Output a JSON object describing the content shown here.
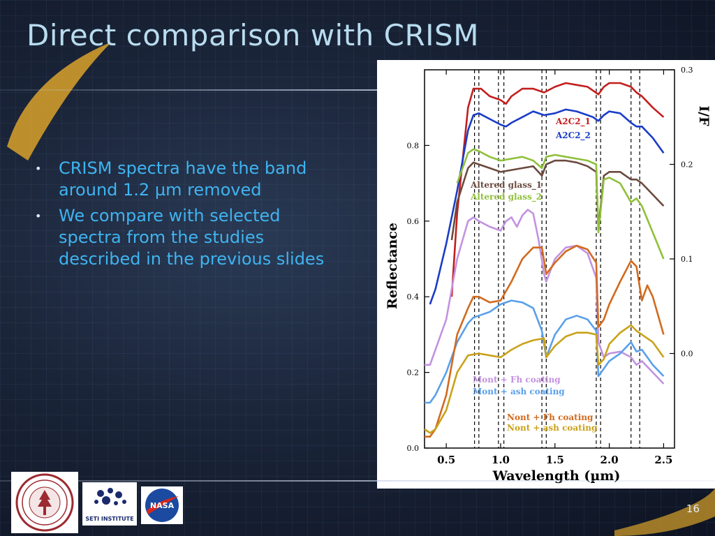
{
  "slide": {
    "title": "Direct comparison with CRISM",
    "bullets": [
      "CRISM spectra have the band around 1.2 µm removed",
      "We compare with selected spectra from the studies described in the previous slides"
    ],
    "page_number": "16"
  },
  "logos": {
    "seti_label": "SETI INSTITUTE",
    "nasa_label": "NASA"
  },
  "colors": {
    "title": "#b9dcef",
    "bullet_text": "#3fb4f0",
    "accent_swoosh": "#e0a020"
  },
  "chart_data": {
    "type": "line",
    "xlabel": "Wavelength (µm)",
    "ylabel": "Reflectance",
    "y2label": "I/F",
    "xlim": [
      0.3,
      2.6
    ],
    "ylim": [
      0.0,
      1.0
    ],
    "x_ticks": [
      "0.5",
      "1.0",
      "1.5",
      "2.0",
      "2.5"
    ],
    "x_tick_values": [
      0.5,
      1.0,
      1.5,
      2.0,
      2.5
    ],
    "y_ticks": [
      "0.0",
      "0.2",
      "0.4",
      "0.6",
      "0.8"
    ],
    "y_tick_values": [
      0.0,
      0.2,
      0.4,
      0.6,
      0.8
    ],
    "y2_ticks": [
      "0.0",
      "0.1",
      "0.2",
      "0.3"
    ],
    "y2_tick_reflectance": [
      0.25,
      0.5,
      0.75,
      1.0
    ],
    "vlines": [
      0.76,
      0.8,
      0.98,
      1.03,
      1.38,
      1.42,
      1.88,
      1.92,
      2.2,
      2.28
    ],
    "grid": false,
    "series": [
      {
        "name": "A2C2_1",
        "color": "#c41e1e",
        "x": [
          0.55,
          0.6,
          0.7,
          0.75,
          0.82,
          0.9,
          1.0,
          1.05,
          1.1,
          1.2,
          1.3,
          1.4,
          1.5,
          1.6,
          1.7,
          1.8,
          1.85,
          1.9,
          1.95,
          2.0,
          2.1,
          2.2,
          2.25,
          2.3,
          2.4,
          2.5
        ],
        "values": [
          0.4,
          0.62,
          0.9,
          0.95,
          0.95,
          0.93,
          0.92,
          0.91,
          0.93,
          0.95,
          0.95,
          0.94,
          0.955,
          0.965,
          0.96,
          0.955,
          0.945,
          0.935,
          0.955,
          0.965,
          0.965,
          0.955,
          0.94,
          0.93,
          0.9,
          0.875
        ]
      },
      {
        "name": "A2C2_2",
        "color": "#1a3cc8",
        "x": [
          0.35,
          0.4,
          0.5,
          0.6,
          0.7,
          0.75,
          0.8,
          0.9,
          1.0,
          1.05,
          1.1,
          1.2,
          1.3,
          1.4,
          1.5,
          1.6,
          1.7,
          1.8,
          1.85,
          1.9,
          1.95,
          2.0,
          2.1,
          2.2,
          2.25,
          2.3,
          2.4,
          2.5
        ],
        "values": [
          0.38,
          0.42,
          0.54,
          0.68,
          0.84,
          0.88,
          0.885,
          0.87,
          0.855,
          0.85,
          0.86,
          0.875,
          0.89,
          0.88,
          0.885,
          0.895,
          0.89,
          0.88,
          0.875,
          0.865,
          0.88,
          0.89,
          0.885,
          0.86,
          0.85,
          0.85,
          0.82,
          0.78
        ]
      },
      {
        "name": "Altered glass_1",
        "color": "#6b4a3e",
        "x": [
          0.55,
          0.6,
          0.7,
          0.75,
          0.8,
          0.9,
          1.0,
          1.1,
          1.2,
          1.3,
          1.38,
          1.42,
          1.5,
          1.6,
          1.7,
          1.8,
          1.88,
          1.9,
          1.95,
          2.0,
          2.1,
          2.2,
          2.25,
          2.3,
          2.4,
          2.5
        ],
        "values": [
          0.55,
          0.65,
          0.74,
          0.755,
          0.75,
          0.74,
          0.73,
          0.735,
          0.74,
          0.745,
          0.72,
          0.75,
          0.76,
          0.76,
          0.755,
          0.745,
          0.73,
          0.58,
          0.72,
          0.73,
          0.73,
          0.71,
          0.71,
          0.7,
          0.67,
          0.64
        ]
      },
      {
        "name": "Altered glass_2",
        "color": "#8fc03a",
        "x": [
          0.6,
          0.7,
          0.75,
          0.8,
          0.9,
          1.0,
          1.1,
          1.2,
          1.3,
          1.38,
          1.42,
          1.5,
          1.6,
          1.7,
          1.8,
          1.88,
          1.9,
          1.95,
          2.0,
          2.1,
          2.2,
          2.25,
          2.3,
          2.4,
          2.5
        ],
        "values": [
          0.7,
          0.78,
          0.79,
          0.785,
          0.77,
          0.76,
          0.765,
          0.77,
          0.76,
          0.74,
          0.77,
          0.775,
          0.77,
          0.765,
          0.76,
          0.75,
          0.57,
          0.71,
          0.715,
          0.7,
          0.65,
          0.66,
          0.64,
          0.57,
          0.5
        ]
      },
      {
        "name": "Mont + Fh coating",
        "color": "#c392e0",
        "x": [
          0.3,
          0.35,
          0.4,
          0.5,
          0.6,
          0.7,
          0.75,
          0.8,
          0.9,
          1.0,
          1.05,
          1.1,
          1.15,
          1.2,
          1.25,
          1.3,
          1.35,
          1.4,
          1.42,
          1.5,
          1.6,
          1.7,
          1.8,
          1.88,
          1.9,
          1.95,
          2.0,
          2.1,
          2.2,
          2.25,
          2.3,
          2.4,
          2.5
        ],
        "values": [
          0.22,
          0.22,
          0.26,
          0.34,
          0.5,
          0.6,
          0.61,
          0.6,
          0.585,
          0.575,
          0.6,
          0.61,
          0.585,
          0.615,
          0.63,
          0.62,
          0.55,
          0.46,
          0.44,
          0.5,
          0.53,
          0.535,
          0.515,
          0.45,
          0.28,
          0.24,
          0.25,
          0.255,
          0.24,
          0.22,
          0.23,
          0.2,
          0.17
        ]
      },
      {
        "name": "Mont + ash coating",
        "color": "#5aa0ea",
        "x": [
          0.3,
          0.35,
          0.4,
          0.5,
          0.6,
          0.7,
          0.75,
          0.8,
          0.9,
          1.0,
          1.1,
          1.2,
          1.3,
          1.38,
          1.42,
          1.5,
          1.6,
          1.7,
          1.8,
          1.88,
          1.9,
          1.95,
          2.0,
          2.1,
          2.2,
          2.25,
          2.3,
          2.4,
          2.5
        ],
        "values": [
          0.12,
          0.12,
          0.14,
          0.2,
          0.28,
          0.33,
          0.345,
          0.35,
          0.36,
          0.38,
          0.39,
          0.385,
          0.37,
          0.31,
          0.24,
          0.3,
          0.34,
          0.35,
          0.34,
          0.31,
          0.19,
          0.21,
          0.23,
          0.25,
          0.28,
          0.255,
          0.26,
          0.22,
          0.19
        ]
      },
      {
        "name": "Nont + Fh coating",
        "color": "#d26a1e",
        "x": [
          0.3,
          0.35,
          0.4,
          0.5,
          0.6,
          0.7,
          0.75,
          0.8,
          0.9,
          1.0,
          1.1,
          1.2,
          1.3,
          1.38,
          1.42,
          1.5,
          1.6,
          1.7,
          1.8,
          1.88,
          1.9,
          1.95,
          2.0,
          2.1,
          2.2,
          2.25,
          2.3,
          2.35,
          2.4,
          2.5
        ],
        "values": [
          0.03,
          0.03,
          0.05,
          0.14,
          0.3,
          0.37,
          0.4,
          0.4,
          0.385,
          0.39,
          0.44,
          0.5,
          0.53,
          0.53,
          0.46,
          0.49,
          0.52,
          0.535,
          0.525,
          0.49,
          0.32,
          0.34,
          0.38,
          0.44,
          0.495,
          0.48,
          0.39,
          0.43,
          0.4,
          0.3
        ]
      },
      {
        "name": "Nont + ash coating",
        "color": "#c9a21a",
        "x": [
          0.3,
          0.35,
          0.4,
          0.5,
          0.6,
          0.7,
          0.8,
          0.9,
          1.0,
          1.1,
          1.2,
          1.3,
          1.4,
          1.42,
          1.5,
          1.6,
          1.7,
          1.8,
          1.88,
          1.9,
          1.95,
          2.0,
          2.1,
          2.2,
          2.25,
          2.3,
          2.4,
          2.5
        ],
        "values": [
          0.05,
          0.04,
          0.05,
          0.1,
          0.2,
          0.245,
          0.25,
          0.245,
          0.24,
          0.26,
          0.275,
          0.285,
          0.29,
          0.24,
          0.27,
          0.295,
          0.305,
          0.305,
          0.3,
          0.22,
          0.235,
          0.275,
          0.305,
          0.325,
          0.31,
          0.3,
          0.28,
          0.24
        ]
      }
    ],
    "labels": [
      {
        "text": "A2C2_1",
        "color": "#c41e1e"
      },
      {
        "text": "A2C2_2",
        "color": "#1a3cc8"
      },
      {
        "text": "Altered glass_1",
        "color": "#6b4a3e"
      },
      {
        "text": "Altered glass_2",
        "color": "#8fc03a"
      },
      {
        "text": "Mont + Fh coating",
        "color": "#c392e0"
      },
      {
        "text": "Mont + ash coating",
        "color": "#5aa0ea"
      },
      {
        "text": "Nont + Fh coating",
        "color": "#d26a1e"
      },
      {
        "text": "Nont + ash coating",
        "color": "#c9a21a"
      }
    ]
  }
}
